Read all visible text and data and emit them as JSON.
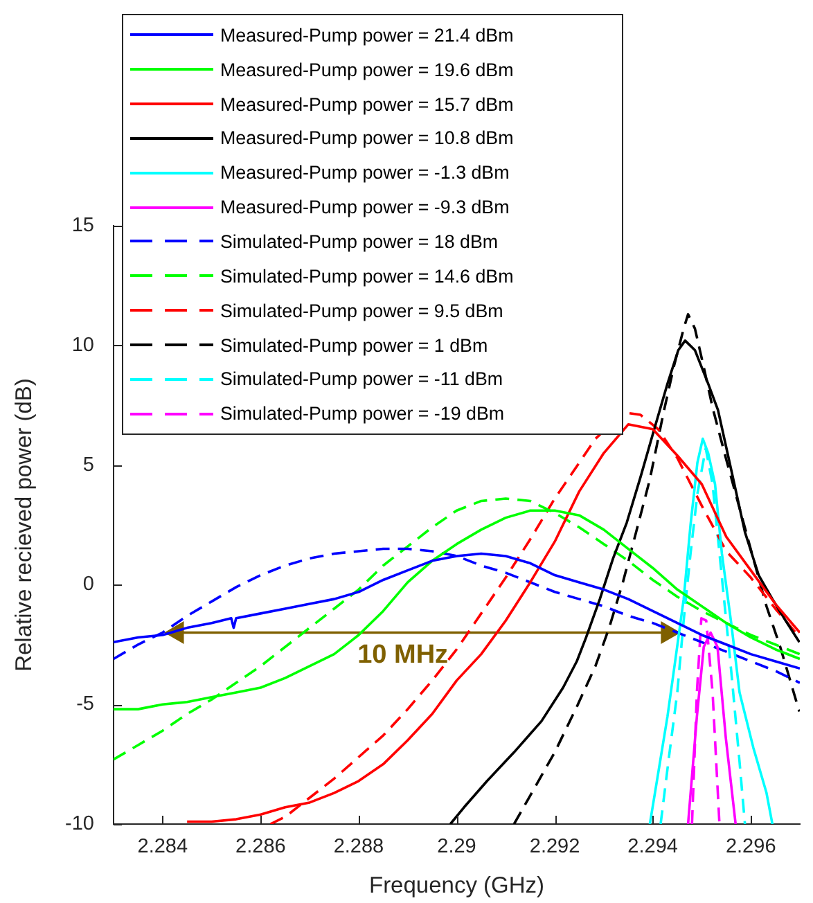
{
  "chart_data": {
    "type": "line",
    "xlabel": "Frequency (GHz)",
    "ylabel": "Relative recieved power (dB)",
    "xlim": [
      2.283,
      2.297
    ],
    "xticks": [
      2.284,
      2.286,
      2.288,
      2.29,
      2.292,
      2.294,
      2.296
    ],
    "ylim": [
      -10,
      15
    ],
    "yticks": [
      -10,
      -5,
      0,
      5,
      10,
      15
    ],
    "legend": "top left",
    "marker": "none",
    "x": [
      2.283,
      2.2835,
      2.284,
      2.2845,
      2.285,
      2.2855,
      2.286,
      2.2865,
      2.287,
      2.2875,
      2.288,
      2.2885,
      2.289,
      2.2895,
      2.29,
      2.2905,
      2.291,
      2.2915,
      2.292,
      2.2925,
      2.293,
      2.2935,
      2.294,
      2.2945,
      2.295,
      2.2955,
      2.296,
      2.2965,
      2.297
    ],
    "annotations": [
      {
        "text": "10 MHz",
        "x": 2.2889,
        "y": -2
      }
    ],
    "series": [
      {
        "name": "Measured-Pump power = 21.4 dBm",
        "color": "#0000ff",
        "line_style": "solid",
        "x": [
          2.283,
          2.2835,
          2.284,
          2.2845,
          2.285,
          2.2854,
          2.28545,
          2.2855,
          2.286,
          2.2865,
          2.287,
          2.2875,
          2.288,
          2.2885,
          2.289,
          2.2895,
          2.29,
          2.2905,
          2.291,
          2.2915,
          2.292,
          2.2925,
          2.293,
          2.2935,
          2.294,
          2.2945,
          2.295,
          2.2955,
          2.296,
          2.2965,
          2.297
        ],
        "values": [
          -2.4,
          -2.2,
          -2.1,
          -1.8,
          -1.6,
          -1.4,
          -1.8,
          -1.4,
          -1.2,
          -1.0,
          -0.8,
          -0.6,
          -0.3,
          0.2,
          0.6,
          1.0,
          1.2,
          1.3,
          1.2,
          0.9,
          0.4,
          0.1,
          -0.2,
          -0.6,
          -1.1,
          -1.6,
          -2.1,
          -2.5,
          -2.9,
          -3.2,
          -3.5
        ]
      },
      {
        "name": "Measured-Pump power = 19.6 dBm",
        "color": "#00ff00",
        "line_style": "solid",
        "values": [
          -5.2,
          -5.2,
          -5.0,
          -4.9,
          -4.7,
          -4.5,
          -4.3,
          -3.9,
          -3.4,
          -2.9,
          -2.1,
          -1.1,
          0.1,
          1.0,
          1.7,
          2.3,
          2.8,
          3.1,
          3.1,
          2.9,
          2.3,
          1.5,
          0.7,
          -0.2,
          -0.9,
          -1.6,
          -2.2,
          -2.7,
          -3.1
        ]
      },
      {
        "name": "Measured-Pump power = 15.7 dBm",
        "color": "#ff0000",
        "line_style": "solid",
        "x": [
          2.2845,
          2.285,
          2.2855,
          2.286,
          2.2865,
          2.287,
          2.2875,
          2.288,
          2.2885,
          2.289,
          2.2895,
          2.29,
          2.2905,
          2.291,
          2.2915,
          2.292,
          2.2925,
          2.293,
          2.2935,
          2.294,
          2.2945,
          2.295,
          2.2955,
          2.296,
          2.2965,
          2.297
        ],
        "values": [
          -9.9,
          -9.9,
          -9.8,
          -9.6,
          -9.3,
          -9.1,
          -8.7,
          -8.2,
          -7.5,
          -6.5,
          -5.4,
          -4.0,
          -2.9,
          -1.5,
          0.1,
          1.8,
          3.9,
          5.5,
          6.7,
          6.5,
          5.4,
          4.2,
          2.0,
          0.6,
          -0.8,
          -2.0
        ]
      },
      {
        "name": "Measured-Pump power = 10.8 dBm",
        "color": "#000000",
        "line_style": "solid",
        "x": [
          2.28987,
          2.29015,
          2.29062,
          2.29117,
          2.29173,
          2.29217,
          2.29245,
          2.29264,
          2.29292,
          2.29319,
          2.29347,
          2.29375,
          2.29403,
          2.2943,
          2.29452,
          2.29466,
          2.29486,
          2.29513,
          2.29533,
          2.2956,
          2.29588,
          2.29616,
          2.29644,
          2.29671,
          2.29699
        ],
        "values": [
          -10,
          -9.3,
          -8.2,
          -7.0,
          -5.7,
          -4.3,
          -3.2,
          -2.2,
          -0.6,
          1.1,
          2.6,
          4.5,
          6.5,
          8.4,
          9.8,
          10.2,
          9.8,
          8.4,
          7.3,
          4.8,
          2.2,
          0.4,
          -0.6,
          -1.5,
          -2.4
        ]
      },
      {
        "name": "Measured-Pump power = -1.3 dBm",
        "color": "#00ffff",
        "line_style": "solid",
        "x": [
          2.29394,
          2.29414,
          2.2943,
          2.29447,
          2.29463,
          2.29477,
          2.29491,
          2.29502,
          2.29513,
          2.29527,
          2.29541,
          2.2956,
          2.29577,
          2.29605,
          2.29632,
          2.29644
        ],
        "values": [
          -10,
          -7.5,
          -5.5,
          -3.0,
          -0.6,
          2.5,
          5.1,
          6.1,
          5.5,
          4.2,
          1.3,
          -1.6,
          -4.5,
          -6.8,
          -8.7,
          -10
        ]
      },
      {
        "name": "Measured-Pump power = -9.3 dBm",
        "color": "#ff00ff",
        "line_style": "solid",
        "x": [
          2.29472,
          2.2949,
          2.29504,
          2.29518,
          2.29532,
          2.29549,
          2.29569
        ],
        "values": [
          -10,
          -5.5,
          -2.6,
          -2.0,
          -2.6,
          -6.4,
          -10
        ]
      },
      {
        "name": "Simulated-Pump power = 18 dBm",
        "color": "#0000ff",
        "line_style": "dashed",
        "values": [
          -3.1,
          -2.5,
          -2.0,
          -1.3,
          -0.7,
          -0.1,
          0.4,
          0.8,
          1.1,
          1.3,
          1.4,
          1.5,
          1.5,
          1.4,
          1.2,
          0.8,
          0.5,
          0.1,
          -0.3,
          -0.6,
          -0.9,
          -1.3,
          -1.6,
          -2.0,
          -2.4,
          -2.8,
          -3.2,
          -3.6,
          -4.1
        ]
      },
      {
        "name": "Simulated-Pump power = 14.6 dBm",
        "color": "#00ff00",
        "line_style": "dashed",
        "values": [
          -7.3,
          -6.7,
          -6.1,
          -5.4,
          -4.8,
          -4.1,
          -3.4,
          -2.6,
          -1.8,
          -1.0,
          -0.2,
          0.8,
          1.6,
          2.4,
          3.1,
          3.5,
          3.6,
          3.5,
          3.0,
          2.4,
          1.7,
          1.0,
          0.2,
          -0.5,
          -1.1,
          -1.6,
          -2.1,
          -2.5,
          -2.9
        ]
      },
      {
        "name": "Simulated-Pump power = 9.5 dBm",
        "color": "#ff0000",
        "line_style": "dashed",
        "x": [
          2.2862,
          2.2865,
          2.287,
          2.2875,
          2.288,
          2.2885,
          2.289,
          2.2895,
          2.29,
          2.2905,
          2.291,
          2.2915,
          2.292,
          2.2925,
          2.29283,
          2.2934,
          2.29375,
          2.29411,
          2.2945,
          2.295,
          2.2955,
          2.296,
          2.2965,
          2.297
        ],
        "values": [
          -10,
          -9.7,
          -8.9,
          -8.1,
          -7.2,
          -6.3,
          -5.2,
          -4.0,
          -2.7,
          -1.2,
          0.3,
          1.9,
          3.6,
          5.1,
          6.1,
          7.2,
          7.1,
          6.5,
          5.3,
          3.3,
          1.4,
          0.3,
          -1.0,
          -2.2
        ]
      },
      {
        "name": "Simulated-Pump power = 1 dBm",
        "color": "#000000",
        "line_style": "dashed",
        "x": [
          2.29117,
          2.29153,
          2.292,
          2.29245,
          2.29283,
          2.29311,
          2.29339,
          2.29366,
          2.29394,
          2.29422,
          2.29444,
          2.29463,
          2.29472,
          2.29486,
          2.29505,
          2.29522,
          2.29549,
          2.29577,
          2.29605,
          2.29632,
          2.2966,
          2.29699
        ],
        "values": [
          -10,
          -8.7,
          -7.0,
          -5.1,
          -3.4,
          -1.8,
          0.1,
          2.2,
          4.4,
          7.2,
          9.2,
          10.7,
          11.3,
          10.7,
          9.0,
          7.4,
          5.3,
          3.2,
          1.1,
          -0.9,
          -2.6,
          -5.3
        ]
      },
      {
        "name": "Simulated-Pump power = -11 dBm",
        "color": "#00ffff",
        "line_style": "dashed",
        "x": [
          2.29416,
          2.29433,
          2.2945,
          2.29463,
          2.29477,
          2.29491,
          2.29508,
          2.29522,
          2.29541,
          2.2956,
          2.29577,
          2.29588
        ],
        "values": [
          -10,
          -7.2,
          -4.5,
          -1.5,
          1.3,
          3.8,
          5.7,
          4.2,
          0.3,
          -3.6,
          -7.4,
          -10
        ]
      },
      {
        "name": "Simulated-Pump power = -19 dBm",
        "color": "#ff00ff",
        "line_style": "dashed",
        "x": [
          2.2948,
          2.2949,
          2.29499,
          2.29509,
          2.29522,
          2.29536
        ],
        "values": [
          -10,
          -4.5,
          -1.4,
          -1.5,
          -4.5,
          -10
        ]
      },
      {
        "color": "#7f6000",
        "line_style": "solid",
        "marker": "triangle",
        "x": [
          2.2843,
          2.2943
        ],
        "values": [
          -2,
          -2
        ]
      }
    ]
  }
}
